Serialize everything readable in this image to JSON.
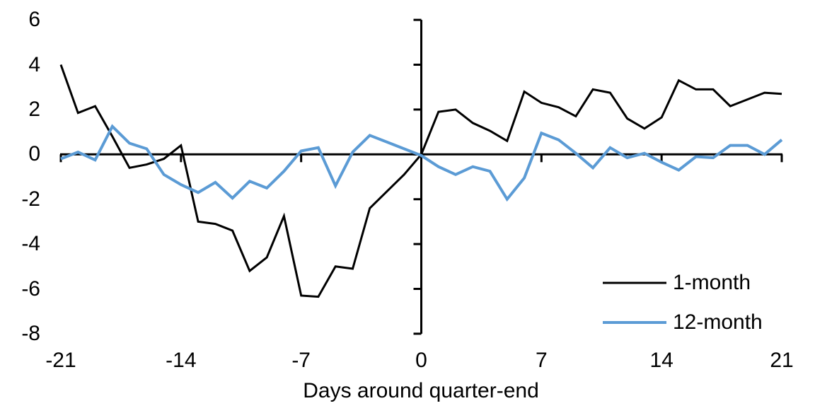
{
  "chart_data": {
    "type": "line",
    "title": "",
    "xlabel": "Days around quarter-end",
    "ylabel": "",
    "xlim": [
      -21,
      21
    ],
    "ylim": [
      -8,
      6
    ],
    "grid": false,
    "legend_position": "lower-right",
    "x_ticks": [
      -21,
      -14,
      -7,
      0,
      7,
      14,
      21
    ],
    "y_ticks": [
      6,
      4,
      2,
      0,
      -2,
      -4,
      -6,
      -8
    ],
    "x": [
      -21,
      -20,
      -19,
      -18,
      -17,
      -16,
      -15,
      -14,
      -13,
      -12,
      -11,
      -10,
      -9,
      -8,
      -7,
      -6,
      -5,
      -4,
      -3,
      -2,
      -1,
      0,
      1,
      2,
      3,
      4,
      5,
      6,
      7,
      8,
      9,
      10,
      11,
      12,
      13,
      14,
      15,
      16,
      17,
      18,
      19,
      20,
      21
    ],
    "series": [
      {
        "name": "1-month",
        "color": "#000000",
        "values": [
          4.0,
          1.85,
          2.15,
          0.8,
          -0.6,
          -0.45,
          -0.2,
          0.4,
          -3.0,
          -3.1,
          -3.4,
          -5.2,
          -4.6,
          -2.75,
          -6.3,
          -6.35,
          -5.0,
          -5.1,
          -2.4,
          -1.65,
          -0.9,
          0.0,
          1.9,
          2.0,
          1.4,
          1.05,
          0.6,
          2.8,
          2.3,
          2.1,
          1.7,
          2.9,
          2.75,
          1.6,
          1.15,
          1.65,
          3.3,
          2.9,
          2.9,
          2.15,
          2.45,
          2.75,
          2.7
        ]
      },
      {
        "name": "12-month",
        "color": "#5B9BD5",
        "values": [
          -0.2,
          0.1,
          -0.25,
          1.25,
          0.5,
          0.25,
          -0.9,
          -1.35,
          -1.7,
          -1.25,
          -1.95,
          -1.2,
          -1.5,
          -0.75,
          0.15,
          0.3,
          -1.4,
          0.1,
          0.85,
          0.55,
          0.25,
          -0.05,
          -0.55,
          -0.9,
          -0.55,
          -0.75,
          -2.0,
          -1.05,
          0.95,
          0.65,
          0.05,
          -0.6,
          0.3,
          -0.15,
          0.05,
          -0.35,
          -0.7,
          -0.1,
          -0.15,
          0.4,
          0.4,
          0.0,
          0.65
        ]
      }
    ],
    "axis_color": "#000000"
  }
}
